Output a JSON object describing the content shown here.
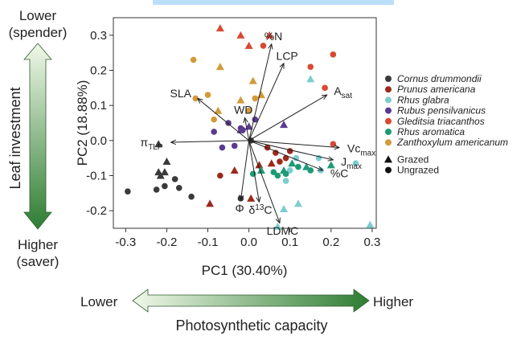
{
  "side_labels": {
    "top": [
      "Lower",
      "(spender)"
    ],
    "middle": "Leaf investment",
    "bottom": [
      "Higher",
      "(saver)"
    ],
    "left": "Lower",
    "right": "Higher",
    "caption": "Photosynthetic capacity"
  },
  "colors": {
    "arrow_dark": "#2e7d32",
    "arrow_light": "#f1f8e9",
    "top_bar": "#bbdefb"
  },
  "chart_data": {
    "type": "scatter",
    "title": "",
    "xlabel": "PC1 (30.40%)",
    "ylabel": "PC2 (18.88%)",
    "xlim": [
      -0.33,
      0.31
    ],
    "ylim": [
      -0.25,
      0.35
    ],
    "xticks": [
      "-0.3",
      "-0.2",
      "-0.1",
      "0.0",
      "0.1",
      "0.2",
      "0.3"
    ],
    "yticks": [
      "-0.2",
      "-0.1",
      "0.0",
      "0.1",
      "0.2",
      "0.3"
    ],
    "grid": false,
    "legend_position": "right",
    "shape_legend": [
      {
        "shape": "triangle",
        "label": "Grazed"
      },
      {
        "shape": "circle",
        "label": "Ungrazed"
      }
    ],
    "series": [
      {
        "name": "Cornus drummondii",
        "color": "#3a3a3a",
        "points": [
          {
            "x": -0.22,
            "y": -0.01,
            "s": "t"
          },
          {
            "x": -0.215,
            "y": -0.1,
            "s": "t"
          },
          {
            "x": -0.205,
            "y": -0.09,
            "s": "t"
          },
          {
            "x": -0.22,
            "y": -0.09,
            "s": "t"
          },
          {
            "x": -0.2,
            "y": -0.06,
            "s": "t"
          },
          {
            "x": -0.295,
            "y": -0.145,
            "s": "c"
          },
          {
            "x": -0.225,
            "y": -0.14,
            "s": "c"
          },
          {
            "x": -0.205,
            "y": -0.13,
            "s": "c"
          },
          {
            "x": -0.18,
            "y": -0.11,
            "s": "c"
          },
          {
            "x": -0.17,
            "y": -0.135,
            "s": "c"
          },
          {
            "x": -0.14,
            "y": -0.16,
            "s": "c"
          },
          {
            "x": -0.02,
            "y": -0.165,
            "s": "c"
          },
          {
            "x": 0.005,
            "y": 0.0,
            "s": "c"
          }
        ]
      },
      {
        "name": "Prunus americana",
        "color": "#9b2a1c",
        "points": [
          {
            "x": -0.095,
            "y": -0.18,
            "s": "t"
          },
          {
            "x": -0.035,
            "y": -0.085,
            "s": "t"
          },
          {
            "x": 0.005,
            "y": -0.165,
            "s": "t"
          },
          {
            "x": 0.025,
            "y": -0.07,
            "s": "t"
          },
          {
            "x": 0.055,
            "y": -0.065,
            "s": "t"
          },
          {
            "x": -0.07,
            "y": -0.1,
            "s": "c"
          },
          {
            "x": 0.045,
            "y": -0.02,
            "s": "c"
          },
          {
            "x": 0.065,
            "y": -0.035,
            "s": "c"
          },
          {
            "x": 0.075,
            "y": -0.06,
            "s": "c"
          },
          {
            "x": 0.09,
            "y": -0.05,
            "s": "c"
          },
          {
            "x": 0.1,
            "y": -0.03,
            "s": "c"
          }
        ]
      },
      {
        "name": "Rhus glabra",
        "color": "#7ccdd0",
        "points": [
          {
            "x": 0.15,
            "y": 0.175,
            "s": "t"
          },
          {
            "x": 0.085,
            "y": -0.195,
            "s": "t"
          },
          {
            "x": 0.12,
            "y": -0.18,
            "s": "t"
          },
          {
            "x": 0.295,
            "y": -0.24,
            "s": "t"
          },
          {
            "x": 0.07,
            "y": -0.245,
            "s": "t"
          },
          {
            "x": 0.1,
            "y": -0.085,
            "s": "c"
          },
          {
            "x": 0.115,
            "y": -0.05,
            "s": "c"
          },
          {
            "x": 0.17,
            "y": -0.05,
            "s": "c"
          },
          {
            "x": 0.175,
            "y": -0.085,
            "s": "c"
          },
          {
            "x": 0.26,
            "y": -0.065,
            "s": "c"
          },
          {
            "x": 0.09,
            "y": -0.115,
            "s": "c"
          }
        ]
      },
      {
        "name": "Rubus pensilvanicus",
        "color": "#5a3a90",
        "points": [
          {
            "x": -0.02,
            "y": 0.03,
            "s": "t"
          },
          {
            "x": 0.0,
            "y": 0.04,
            "s": "t"
          },
          {
            "x": 0.085,
            "y": 0.045,
            "s": "t"
          },
          {
            "x": -0.085,
            "y": 0.025,
            "s": "c"
          },
          {
            "x": -0.05,
            "y": 0.05,
            "s": "c"
          },
          {
            "x": -0.065,
            "y": -0.02,
            "s": "c"
          },
          {
            "x": -0.035,
            "y": -0.015,
            "s": "c"
          },
          {
            "x": -0.015,
            "y": 0.03,
            "s": "c"
          },
          {
            "x": 0.015,
            "y": 0.06,
            "s": "c"
          },
          {
            "x": -0.02,
            "y": 0.035,
            "s": "c"
          }
        ]
      },
      {
        "name": "Gleditsia triacanthos",
        "color": "#d84a32",
        "points": [
          {
            "x": -0.07,
            "y": 0.32,
            "s": "t"
          },
          {
            "x": -0.02,
            "y": 0.3,
            "s": "t"
          },
          {
            "x": 0.05,
            "y": 0.3,
            "s": "t"
          },
          {
            "x": 0.0,
            "y": 0.27,
            "s": "t"
          },
          {
            "x": 0.035,
            "y": 0.27,
            "s": "c"
          },
          {
            "x": 0.15,
            "y": 0.21,
            "s": "c"
          },
          {
            "x": 0.205,
            "y": 0.245,
            "s": "c"
          },
          {
            "x": 0.185,
            "y": 0.15,
            "s": "c"
          },
          {
            "x": 0.205,
            "y": -0.01,
            "s": "c"
          }
        ]
      },
      {
        "name": "Rhus aromatica",
        "color": "#1e9b74",
        "points": [
          {
            "x": 0.03,
            "y": -0.085,
            "s": "t"
          },
          {
            "x": 0.085,
            "y": -0.085,
            "s": "t"
          },
          {
            "x": 0.105,
            "y": -0.065,
            "s": "t"
          },
          {
            "x": 0.14,
            "y": -0.075,
            "s": "t"
          },
          {
            "x": 0.2,
            "y": -0.07,
            "s": "t"
          },
          {
            "x": 0.01,
            "y": -0.095,
            "s": "c"
          },
          {
            "x": 0.06,
            "y": -0.09,
            "s": "c"
          },
          {
            "x": 0.07,
            "y": -0.1,
            "s": "c"
          },
          {
            "x": 0.09,
            "y": -0.095,
            "s": "c"
          },
          {
            "x": 0.12,
            "y": -0.075,
            "s": "c"
          },
          {
            "x": 0.15,
            "y": -0.085,
            "s": "c"
          }
        ]
      },
      {
        "name": "Zanthoxylum americanum",
        "color": "#d39a3a",
        "points": [
          {
            "x": -0.07,
            "y": 0.21,
            "s": "t"
          },
          {
            "x": -0.02,
            "y": 0.115,
            "s": "t"
          },
          {
            "x": 0.01,
            "y": 0.17,
            "s": "t"
          },
          {
            "x": 0.03,
            "y": 0.13,
            "s": "t"
          },
          {
            "x": -0.075,
            "y": 0.085,
            "s": "t"
          },
          {
            "x": -0.135,
            "y": 0.23,
            "s": "c"
          },
          {
            "x": -0.13,
            "y": 0.12,
            "s": "c"
          },
          {
            "x": -0.1,
            "y": 0.13,
            "s": "c"
          },
          {
            "x": -0.085,
            "y": 0.06,
            "s": "c"
          },
          {
            "x": 0.015,
            "y": 0.12,
            "s": "c"
          },
          {
            "x": -0.0,
            "y": 0.085,
            "s": "c"
          }
        ]
      }
    ],
    "loadings": [
      {
        "label": "%N",
        "x": 0.055,
        "y": 0.275
      },
      {
        "label": "LCP",
        "x": 0.085,
        "y": 0.22
      },
      {
        "label": "A",
        "sub": "sat",
        "x": 0.19,
        "y": 0.13
      },
      {
        "label": "Vc",
        "sub": "max",
        "x": 0.22,
        "y": -0.02
      },
      {
        "label": "J",
        "sub": "max",
        "x": 0.205,
        "y": -0.055
      },
      {
        "label": "%C",
        "x": 0.18,
        "y": -0.085
      },
      {
        "label": "SLA",
        "x": -0.125,
        "y": 0.12
      },
      {
        "label": "WD",
        "x": -0.01,
        "y": 0.065
      },
      {
        "label": "π",
        "sub": "TLP",
        "x": -0.19,
        "y": -0.005
      },
      {
        "label": "Φ",
        "x": -0.02,
        "y": -0.17
      },
      {
        "label": "δ",
        "sup": "13",
        "tail": "C",
        "x": 0.025,
        "y": -0.175
      },
      {
        "label": "LDMC",
        "x": 0.075,
        "y": -0.235
      }
    ]
  }
}
